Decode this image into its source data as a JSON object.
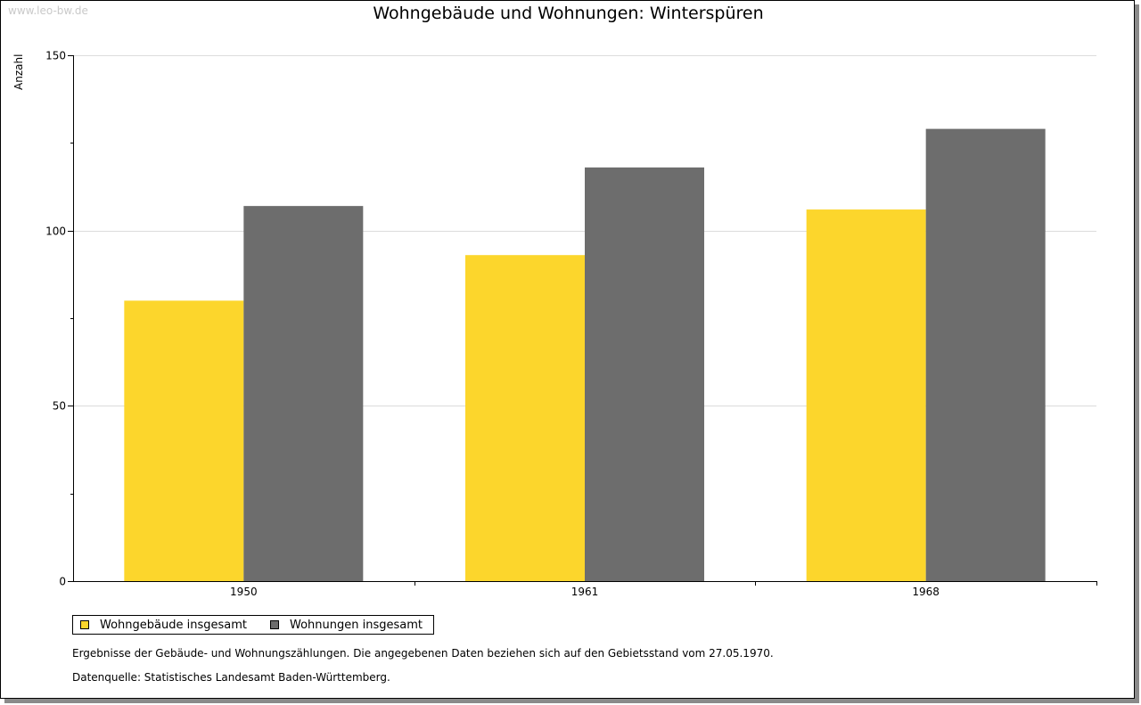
{
  "watermark": "www.leo-bw.de",
  "footnote": "Ergebnisse der Gebäude- und Wohnungszählungen. Die angegebenen Daten beziehen sich auf den Gebietsstand vom 27.05.1970.",
  "source": "Datenquelle: Statistisches Landesamt Baden-Württemberg.",
  "chart_data": {
    "type": "bar",
    "title": "Wohngebäude und Wohnungen: Winterspüren",
    "xlabel": "",
    "ylabel": "Anzahl",
    "categories": [
      "1950",
      "1961",
      "1968"
    ],
    "ylim": [
      0,
      150
    ],
    "yticks": [
      "0",
      "50",
      "100",
      "150"
    ],
    "grid": true,
    "legend_position": "bottom-left",
    "series": [
      {
        "name": "Wohngebäude insgesamt",
        "color": "#fcd62c",
        "values": [
          80,
          93,
          106
        ]
      },
      {
        "name": "Wohnungen insgesamt",
        "color": "#6d6d6d",
        "values": [
          107,
          118,
          129
        ]
      }
    ]
  }
}
